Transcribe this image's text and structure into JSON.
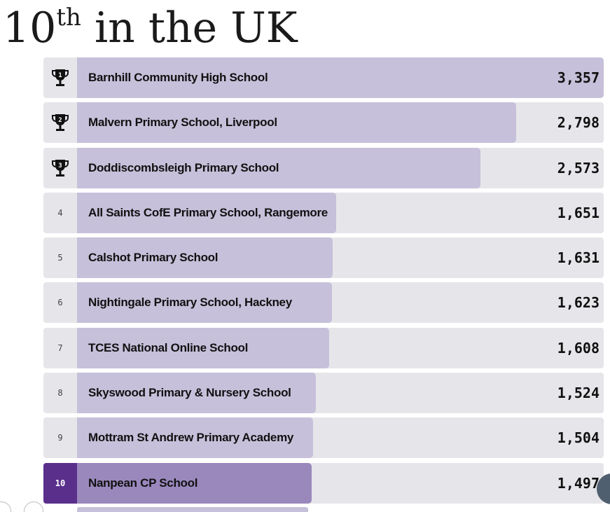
{
  "heading": {
    "main": "10",
    "sup": "th",
    "rest": " in the UK"
  },
  "colors": {
    "bar": "#c6c0da",
    "row_bg": "#e6e6ea",
    "highlight_rank_bg": "#5a2f8c",
    "highlight_bar": "#9a88bd"
  },
  "leaderboard": {
    "max_score": 3357,
    "rows": [
      {
        "rank": "1",
        "trophy": true,
        "name": "Barnhill Community High School",
        "score": "3,357",
        "value": 3357
      },
      {
        "rank": "2",
        "trophy": true,
        "name": "Malvern Primary School, Liverpool",
        "score": "2,798",
        "value": 2798
      },
      {
        "rank": "3",
        "trophy": true,
        "name": "Doddiscombsleigh Primary School",
        "score": "2,573",
        "value": 2573
      },
      {
        "rank": "4",
        "trophy": false,
        "name": "All Saints CofE Primary School, Rangemore",
        "score": "1,651",
        "value": 1651
      },
      {
        "rank": "5",
        "trophy": false,
        "name": "Calshot Primary School",
        "score": "1,631",
        "value": 1631
      },
      {
        "rank": "6",
        "trophy": false,
        "name": "Nightingale Primary School, Hackney",
        "score": "1,623",
        "value": 1623
      },
      {
        "rank": "7",
        "trophy": false,
        "name": "TCES National Online School",
        "score": "1,608",
        "value": 1608
      },
      {
        "rank": "8",
        "trophy": false,
        "name": "Skyswood Primary & Nursery School",
        "score": "1,524",
        "value": 1524
      },
      {
        "rank": "9",
        "trophy": false,
        "name": "Mottram St Andrew Primary Academy",
        "score": "1,504",
        "value": 1504
      },
      {
        "rank": "10",
        "trophy": false,
        "name": "Nanpean CP School",
        "score": "1,497",
        "value": 1497,
        "highlight": true
      }
    ]
  }
}
